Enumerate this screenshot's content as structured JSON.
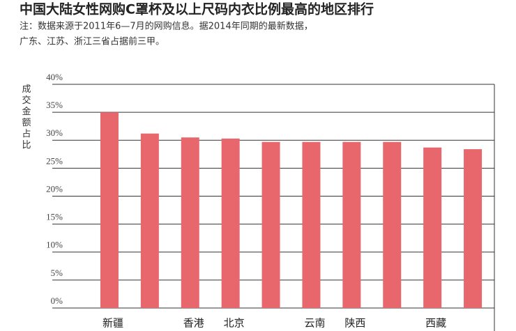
{
  "chart_data": {
    "type": "bar",
    "title": "中国大陆女性网购C罩杯及以上尺码内衣比例最高的地区排行",
    "subtitle": [
      "注：数据来源于2011年6—7月的网购信息。据2014年同期的最新数据，",
      "广东、江苏、浙江三省占据前三甲。"
    ],
    "y_label": "成交金额占比",
    "categories": [
      "新疆",
      null,
      "香港",
      "北京",
      null,
      "云南",
      "陕西",
      null,
      "西藏",
      null
    ],
    "values": [
      35,
      31.2,
      30.5,
      30.3,
      29.7,
      29.7,
      29.7,
      29.7,
      28.7,
      28.4
    ],
    "color": "#e8676d",
    "ylim": [
      0,
      40
    ],
    "yticks": [
      {
        "value": 0,
        "label": "0%"
      },
      {
        "value": 5,
        "label": "5%"
      },
      {
        "value": 10,
        "label": "10%"
      },
      {
        "value": 15,
        "label": "15%"
      },
      {
        "value": 20,
        "label": "20%"
      },
      {
        "value": 25,
        "label": "25%"
      },
      {
        "value": 30,
        "label": "30%"
      },
      {
        "value": 35,
        "label": "35%"
      },
      {
        "value": 40,
        "label": "40%"
      }
    ],
    "grid": true
  }
}
